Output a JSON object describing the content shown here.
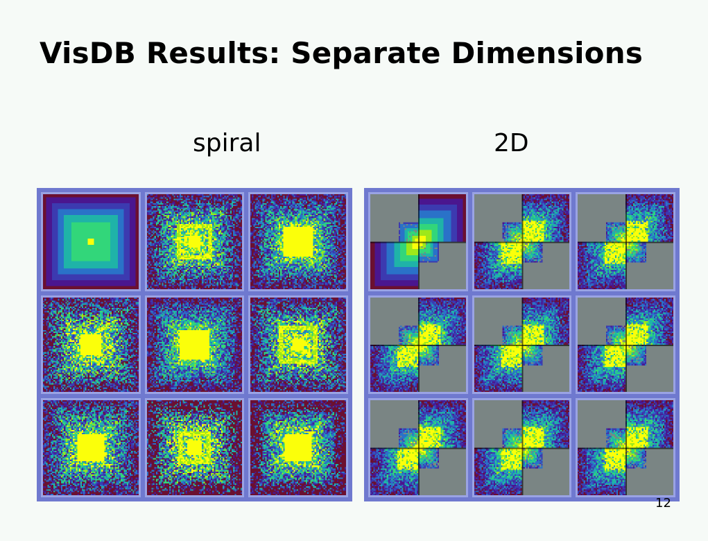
{
  "slide": {
    "title": "VisDB Results: Separate Dimensions",
    "page_number": "12"
  },
  "panels": {
    "spiral": {
      "label": "spiral",
      "cell_count": 9
    },
    "two_d": {
      "label": "2D",
      "cell_count": 9
    }
  },
  "colors": {
    "background": "#f6faf7",
    "frame": "#6f79cf",
    "cell_border": "#9aa3e4",
    "quadrant_gray": "#7a8584",
    "palette": [
      "#fbff0a",
      "#9ee81a",
      "#32d67a",
      "#1fb3a8",
      "#2a72c8",
      "#3c3ab0",
      "#4a168f",
      "#6b1030"
    ]
  }
}
